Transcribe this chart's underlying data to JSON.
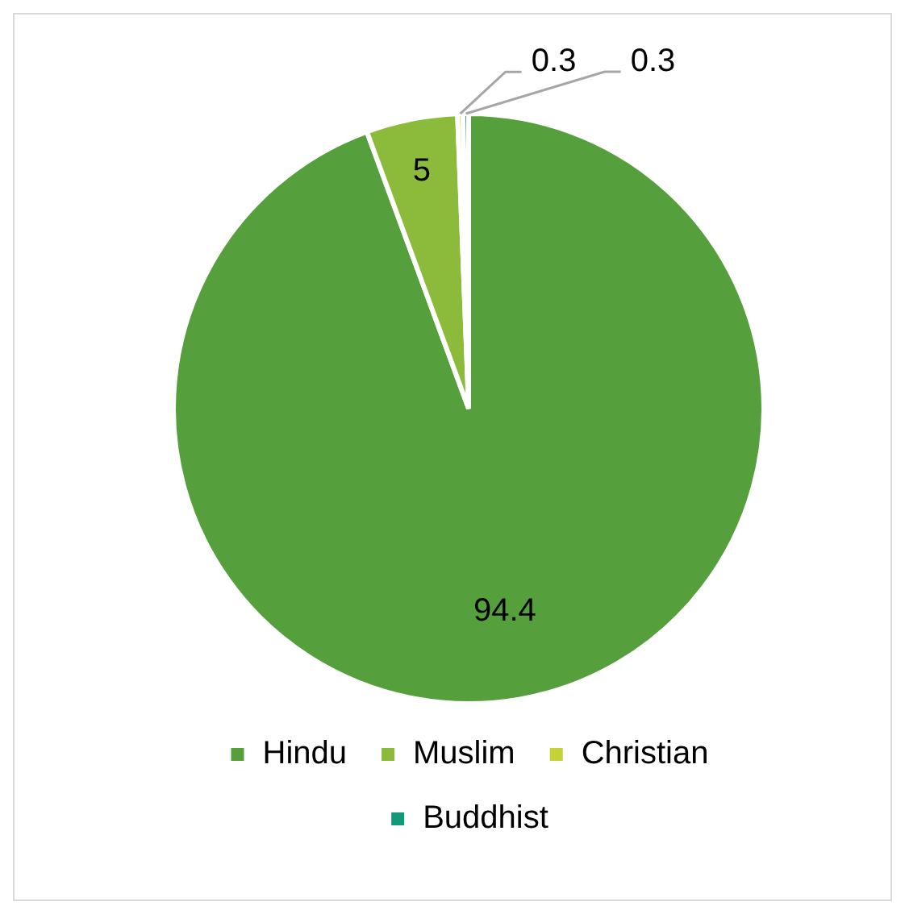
{
  "chart_data": {
    "type": "pie",
    "categories": [
      "Hindu",
      "Muslim",
      "Christian",
      "Buddhist"
    ],
    "values": [
      94.4,
      5,
      0.3,
      0.3
    ],
    "colors": [
      "#55a03c",
      "#8cbb3c",
      "#c4d237",
      "#0f9a7a"
    ],
    "data_labels": true,
    "legend": "bottom"
  }
}
